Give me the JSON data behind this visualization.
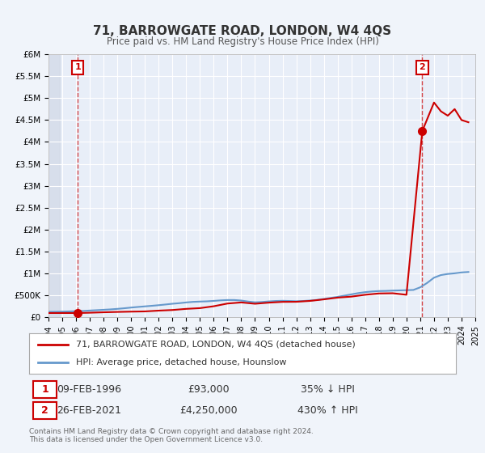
{
  "title": "71, BARROWGATE ROAD, LONDON, W4 4QS",
  "subtitle": "Price paid vs. HM Land Registry's House Price Index (HPI)",
  "bg_color": "#f0f4fa",
  "plot_bg_color": "#e8eef8",
  "grid_color": "#ffffff",
  "xmin": 1994,
  "xmax": 2025,
  "ymin": 0,
  "ymax": 6000000,
  "yticks": [
    0,
    500000,
    1000000,
    1500000,
    2000000,
    2500000,
    3000000,
    3500000,
    4000000,
    4500000,
    5000000,
    5500000,
    6000000
  ],
  "ytick_labels": [
    "£0",
    "£500K",
    "£1M",
    "£1.5M",
    "£2M",
    "£2.5M",
    "£3M",
    "£3.5M",
    "£4M",
    "£4.5M",
    "£5M",
    "£5.5M",
    "£6M"
  ],
  "xticks": [
    1994,
    1995,
    1996,
    1997,
    1998,
    1999,
    2000,
    2001,
    2002,
    2003,
    2004,
    2005,
    2006,
    2007,
    2008,
    2009,
    2010,
    2011,
    2012,
    2013,
    2014,
    2015,
    2016,
    2017,
    2018,
    2019,
    2020,
    2021,
    2022,
    2023,
    2024,
    2025
  ],
  "sale1_x": 1996.12,
  "sale1_y": 93000,
  "sale2_x": 2021.15,
  "sale2_y": 4250000,
  "sale_color": "#cc0000",
  "hpi_color": "#6699cc",
  "hpi_x": [
    1994,
    1994.5,
    1995,
    1995.5,
    1996,
    1996.5,
    1997,
    1997.5,
    1998,
    1998.5,
    1999,
    1999.5,
    2000,
    2000.5,
    2001,
    2001.5,
    2002,
    2002.5,
    2003,
    2003.5,
    2004,
    2004.5,
    2005,
    2005.5,
    2006,
    2006.5,
    2007,
    2007.5,
    2008,
    2008.5,
    2009,
    2009.5,
    2010,
    2010.5,
    2011,
    2011.5,
    2012,
    2012.5,
    2013,
    2013.5,
    2014,
    2014.5,
    2015,
    2015.5,
    2016,
    2016.5,
    2017,
    2017.5,
    2018,
    2018.5,
    2019,
    2019.5,
    2020,
    2020.5,
    2021,
    2021.5,
    2022,
    2022.5,
    2023,
    2023.5,
    2024,
    2024.5
  ],
  "hpi_y": [
    120000,
    122000,
    125000,
    130000,
    135000,
    140000,
    150000,
    158000,
    167000,
    176000,
    188000,
    202000,
    218000,
    232000,
    245000,
    258000,
    272000,
    288000,
    305000,
    318000,
    335000,
    348000,
    355000,
    360000,
    370000,
    382000,
    390000,
    390000,
    378000,
    355000,
    338000,
    345000,
    358000,
    368000,
    372000,
    368000,
    362000,
    368000,
    378000,
    392000,
    415000,
    438000,
    462000,
    490000,
    520000,
    548000,
    570000,
    585000,
    595000,
    598000,
    605000,
    610000,
    615000,
    620000,
    680000,
    780000,
    900000,
    960000,
    985000,
    1000000,
    1020000,
    1030000
  ],
  "price_paid_x": [
    1994,
    1995,
    1996.12,
    1997,
    1998,
    1999,
    2000,
    2001,
    2002,
    2003,
    2004,
    2005,
    2006,
    2007,
    2008,
    2009,
    2010,
    2011,
    2012,
    2013,
    2014,
    2015,
    2016,
    2017,
    2018,
    2019,
    2020,
    2021.15,
    2022,
    2022.5,
    2023,
    2023.5,
    2024,
    2024.5
  ],
  "price_paid_y": [
    93000,
    93000,
    93000,
    100000,
    110000,
    118000,
    125000,
    130000,
    148000,
    162000,
    188000,
    205000,
    248000,
    310000,
    335000,
    305000,
    330000,
    348000,
    350000,
    370000,
    405000,
    445000,
    468000,
    510000,
    540000,
    545000,
    510000,
    4250000,
    4900000,
    4700000,
    4600000,
    4750000,
    4500000,
    4450000
  ],
  "annotation1_label": "1",
  "annotation2_label": "2",
  "legend_line1": "71, BARROWGATE ROAD, LONDON, W4 4QS (detached house)",
  "legend_line2": "HPI: Average price, detached house, Hounslow",
  "table_row1_num": "1",
  "table_row1_date": "09-FEB-1996",
  "table_row1_price": "£93,000",
  "table_row1_hpi": "35% ↓ HPI",
  "table_row2_num": "2",
  "table_row2_date": "26-FEB-2021",
  "table_row2_price": "£4,250,000",
  "table_row2_hpi": "430% ↑ HPI",
  "footer1": "Contains HM Land Registry data © Crown copyright and database right 2024.",
  "footer2": "This data is licensed under the Open Government Licence v3.0."
}
